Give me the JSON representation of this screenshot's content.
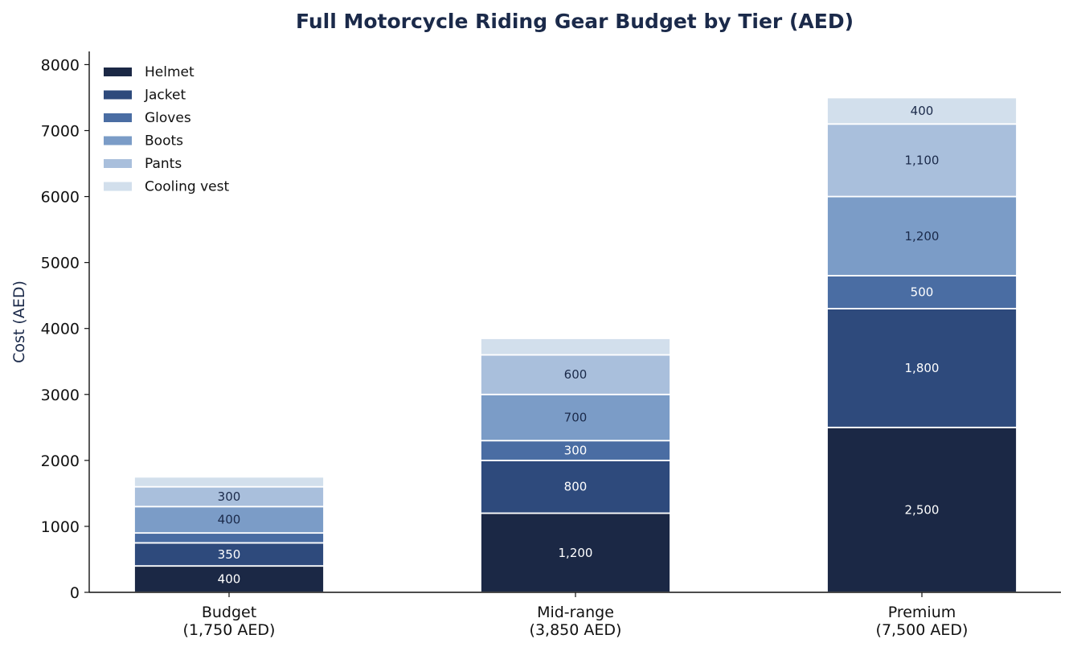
{
  "chart_data": {
    "type": "bar",
    "stacked": true,
    "title": "Full Motorcycle Riding Gear Budget by Tier (AED)",
    "xlabel": "",
    "ylabel": "Cost (AED)",
    "ylim": [
      0,
      8200
    ],
    "yticks": [
      0,
      1000,
      2000,
      3000,
      4000,
      5000,
      6000,
      7000,
      8000
    ],
    "categories": [
      "Budget",
      "Mid-range",
      "Premium"
    ],
    "category_labels": [
      [
        "Budget",
        "(1,750 AED)"
      ],
      [
        "Mid-range",
        "(3,850 AED)"
      ],
      [
        "Premium",
        "(7,500 AED)"
      ]
    ],
    "totals": [
      1750,
      3850,
      7500
    ],
    "legend_position": "top-left",
    "grid": false,
    "series": [
      {
        "name": "Helmet",
        "color": "#1b2845",
        "label_color": "#ffffff",
        "values": [
          400,
          1200,
          2500
        ],
        "labels": [
          "400",
          "1,200",
          "2,500"
        ]
      },
      {
        "name": "Jacket",
        "color": "#2e4a7c",
        "label_color": "#ffffff",
        "values": [
          350,
          800,
          1800
        ],
        "labels": [
          "350",
          "800",
          "1,800"
        ]
      },
      {
        "name": "Gloves",
        "color": "#4a6da3",
        "label_color": "#ffffff",
        "values": [
          150,
          300,
          500
        ],
        "labels": [
          "",
          "300",
          "500"
        ]
      },
      {
        "name": "Boots",
        "color": "#7b9cc7",
        "label_color": "#1b2a4a",
        "values": [
          400,
          700,
          1200
        ],
        "labels": [
          "400",
          "700",
          "1,200"
        ]
      },
      {
        "name": "Pants",
        "color": "#a9bfdc",
        "label_color": "#1b2a4a",
        "values": [
          300,
          600,
          1100
        ],
        "labels": [
          "300",
          "600",
          "1,100"
        ]
      },
      {
        "name": "Cooling vest",
        "color": "#d2dfec",
        "label_color": "#1b2a4a",
        "values": [
          150,
          250,
          400
        ],
        "labels": [
          "",
          "",
          "400"
        ]
      }
    ]
  }
}
